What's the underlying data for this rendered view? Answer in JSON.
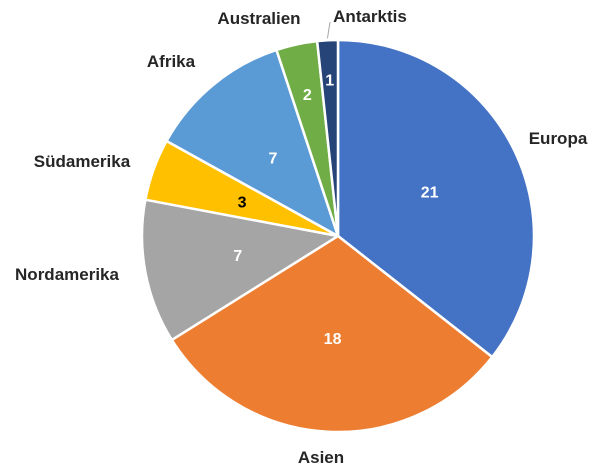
{
  "chart_data": {
    "type": "pie",
    "title": "",
    "start_angle_deg": 0,
    "direction": "clockwise",
    "slices": [
      {
        "label": "Europa",
        "value": 21,
        "color": "#4472C4",
        "value_text_color": "#FFFFFF"
      },
      {
        "label": "Asien",
        "value": 18,
        "color": "#ED7D31",
        "value_text_color": "#FFFFFF"
      },
      {
        "label": "Nordamerika",
        "value": 7,
        "color": "#A5A5A5",
        "value_text_color": "#FFFFFF"
      },
      {
        "label": "Südamerika",
        "value": 3,
        "color": "#FFC000",
        "value_text_color": "#000000"
      },
      {
        "label": "Afrika",
        "value": 7,
        "color": "#5B9BD5",
        "value_text_color": "#FFFFFF"
      },
      {
        "label": "Australien",
        "value": 2,
        "color": "#70AD47",
        "value_text_color": "#FFFFFF"
      },
      {
        "label": "Antarktis",
        "value": 1,
        "color": "#264478",
        "value_text_color": "#FFFFFF"
      }
    ],
    "legend": "none",
    "category_labels": "outside",
    "value_labels": "inside"
  }
}
